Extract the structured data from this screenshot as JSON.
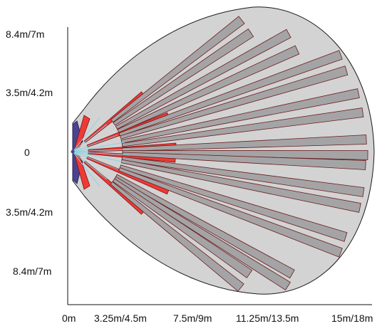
{
  "y_labels": [
    "8.4m/7m",
    "3.5m/4.2m",
    "0",
    "3.5m/4.2m",
    "8.4m/7m"
  ],
  "x_labels": [
    "0m",
    "3.25m/4.5m",
    "7.5m/9m",
    "11.25m/13.5m",
    "15m/18m"
  ],
  "colors": {
    "area": "#d3d3d3",
    "area_outline": "#1a1a1a",
    "long_zone": "#a4a4a6",
    "long_zone_outline": "#6b1a1a",
    "mid_zone": "#ee3a36",
    "near_zone": "#4a4390",
    "ray": "#7fd6e8",
    "axis": "#111111"
  },
  "icons": {
    "detector": "pir-sensor-origin-icon"
  }
}
